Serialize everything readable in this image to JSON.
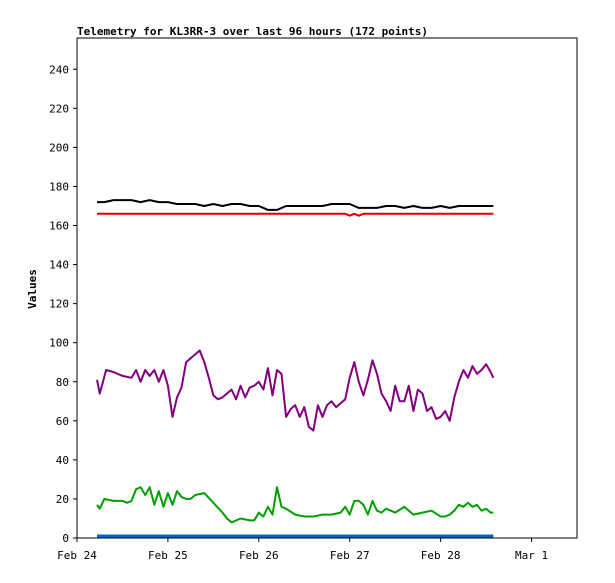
{
  "chart_data": {
    "type": "line",
    "title": "Telemetry for KL3RR-3 over last 96 hours (172 points)",
    "xlabel": "",
    "ylabel": "Values",
    "x_ticks": [
      "Feb 24",
      "Feb 25",
      "Feb 26",
      "Feb 27",
      "Feb 28",
      "Mar 1"
    ],
    "y_ticks": [
      0,
      20,
      40,
      60,
      80,
      100,
      120,
      140,
      160,
      180,
      200,
      220,
      240
    ],
    "xlim": [
      0,
      5.5
    ],
    "ylim": [
      0,
      256
    ],
    "grid": false,
    "legend": "none",
    "series": [
      {
        "color": "#000000",
        "x": [
          0.22,
          0.3,
          0.4,
          0.5,
          0.6,
          0.7,
          0.8,
          0.9,
          1.0,
          1.1,
          1.2,
          1.3,
          1.4,
          1.5,
          1.6,
          1.7,
          1.8,
          1.9,
          2.0,
          2.05,
          2.1,
          2.15,
          2.2,
          2.3,
          2.4,
          2.5,
          2.6,
          2.7,
          2.8,
          2.9,
          3.0,
          3.05,
          3.1,
          3.2,
          3.3,
          3.4,
          3.5,
          3.6,
          3.7,
          3.8,
          3.9,
          4.0,
          4.1,
          4.2,
          4.3,
          4.4,
          4.5,
          4.58
        ],
        "values": [
          172,
          172,
          173,
          173,
          173,
          172,
          173,
          172,
          172,
          171,
          171,
          171,
          170,
          171,
          170,
          171,
          171,
          170,
          170,
          169,
          168,
          168,
          168,
          170,
          170,
          170,
          170,
          170,
          171,
          171,
          171,
          170,
          169,
          169,
          169,
          170,
          170,
          169,
          170,
          169,
          169,
          170,
          169,
          170,
          170,
          170,
          170,
          170
        ]
      },
      {
        "color": "#e00000",
        "x": [
          0.22,
          1.0,
          2.0,
          2.95,
          3.0,
          3.05,
          3.1,
          3.15,
          3.2,
          4.0,
          4.58
        ],
        "values": [
          166,
          166,
          166,
          166,
          165,
          166,
          165,
          166,
          166,
          166,
          166
        ]
      },
      {
        "color": "#800080",
        "x": [
          0.22,
          0.25,
          0.28,
          0.32,
          0.4,
          0.5,
          0.6,
          0.65,
          0.7,
          0.75,
          0.8,
          0.85,
          0.9,
          0.95,
          1.0,
          1.05,
          1.1,
          1.15,
          1.2,
          1.25,
          1.3,
          1.35,
          1.4,
          1.45,
          1.5,
          1.55,
          1.6,
          1.65,
          1.7,
          1.75,
          1.8,
          1.85,
          1.9,
          1.95,
          2.0,
          2.05,
          2.1,
          2.15,
          2.2,
          2.25,
          2.3,
          2.35,
          2.4,
          2.45,
          2.5,
          2.55,
          2.6,
          2.65,
          2.7,
          2.75,
          2.8,
          2.85,
          2.9,
          2.95,
          3.0,
          3.05,
          3.1,
          3.15,
          3.2,
          3.25,
          3.3,
          3.35,
          3.4,
          3.45,
          3.5,
          3.55,
          3.6,
          3.65,
          3.7,
          3.75,
          3.8,
          3.85,
          3.9,
          3.95,
          4.0,
          4.05,
          4.1,
          4.15,
          4.2,
          4.25,
          4.3,
          4.35,
          4.4,
          4.45,
          4.5,
          4.55,
          4.58
        ],
        "values": [
          81,
          74,
          79,
          86,
          85,
          83,
          82,
          86,
          80,
          86,
          83,
          86,
          80,
          86,
          78,
          62,
          72,
          77,
          90,
          92,
          94,
          96,
          90,
          82,
          73,
          71,
          72,
          74,
          76,
          71,
          78,
          72,
          77,
          78,
          80,
          76,
          87,
          73,
          86,
          84,
          62,
          66,
          68,
          62,
          67,
          57,
          55,
          68,
          62,
          68,
          70,
          67,
          69,
          71,
          82,
          90,
          80,
          73,
          81,
          91,
          84,
          74,
          70,
          65,
          78,
          70,
          70,
          78,
          65,
          76,
          74,
          65,
          67,
          61,
          62,
          65,
          60,
          72,
          80,
          86,
          82,
          88,
          84,
          86,
          89,
          85,
          82
        ]
      },
      {
        "color": "#00a000",
        "x": [
          0.22,
          0.25,
          0.3,
          0.4,
          0.5,
          0.55,
          0.6,
          0.65,
          0.7,
          0.75,
          0.8,
          0.85,
          0.9,
          0.95,
          1.0,
          1.05,
          1.1,
          1.15,
          1.2,
          1.25,
          1.3,
          1.4,
          1.5,
          1.6,
          1.65,
          1.7,
          1.8,
          1.9,
          1.95,
          2.0,
          2.05,
          2.1,
          2.15,
          2.2,
          2.25,
          2.3,
          2.4,
          2.5,
          2.6,
          2.7,
          2.8,
          2.9,
          2.95,
          3.0,
          3.05,
          3.1,
          3.15,
          3.2,
          3.25,
          3.3,
          3.35,
          3.4,
          3.5,
          3.6,
          3.7,
          3.8,
          3.9,
          4.0,
          4.05,
          4.1,
          4.15,
          4.2,
          4.25,
          4.3,
          4.35,
          4.4,
          4.45,
          4.5,
          4.55,
          4.58
        ],
        "values": [
          17,
          15,
          20,
          19,
          19,
          18,
          19,
          25,
          26,
          22,
          26,
          17,
          24,
          16,
          23,
          17,
          24,
          21,
          20,
          20,
          22,
          23,
          18,
          13,
          10,
          8,
          10,
          9,
          9,
          13,
          11,
          16,
          12,
          26,
          16,
          15,
          12,
          11,
          11,
          12,
          12,
          13,
          16,
          12,
          19,
          19,
          17,
          12,
          19,
          14,
          13,
          15,
          13,
          16,
          12,
          13,
          14,
          11,
          11,
          12,
          14,
          17,
          16,
          18,
          16,
          17,
          14,
          15,
          13,
          13
        ]
      },
      {
        "color": "#0066cc",
        "x": [
          0.22,
          4.58
        ],
        "values": [
          1,
          1
        ]
      }
    ]
  }
}
